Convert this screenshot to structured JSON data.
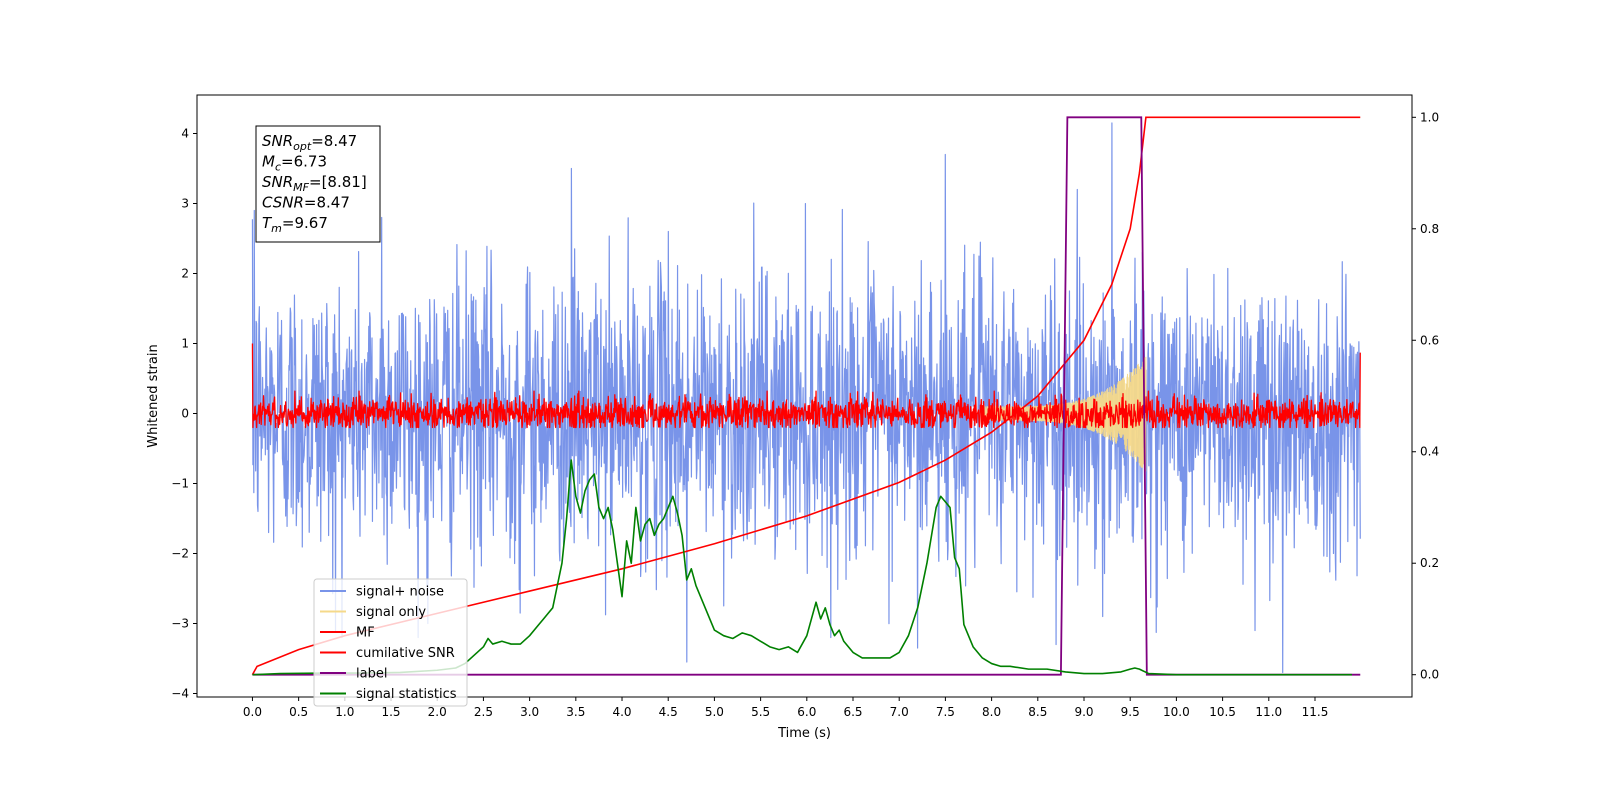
{
  "chart_data": {
    "type": "line",
    "xlabel": "Time (s)",
    "ylabel": "Whitened strain",
    "xlim": [
      -0.6,
      12.55
    ],
    "ylim": [
      -4.05,
      4.55
    ],
    "y2lim": [
      -0.04,
      1.04
    ],
    "xticks": [
      0.0,
      0.5,
      1.0,
      1.5,
      2.0,
      2.5,
      3.0,
      3.5,
      4.0,
      4.5,
      5.0,
      5.5,
      6.0,
      6.5,
      7.0,
      7.5,
      8.0,
      8.5,
      9.0,
      9.5,
      10.0,
      10.5,
      11.0,
      11.5
    ],
    "xtick_labels": [
      "0.0",
      "0.5",
      "1.0",
      "1.5",
      "2.0",
      "2.5",
      "3.0",
      "3.5",
      "4.0",
      "4.5",
      "5.0",
      "5.5",
      "6.0",
      "6.5",
      "7.0",
      "7.5",
      "8.0",
      "8.5",
      "9.0",
      "9.5",
      "10.0",
      "10.5",
      "11.0",
      "11.5"
    ],
    "yticks": [
      -4,
      -3,
      -2,
      -1,
      0,
      1,
      2,
      3,
      4
    ],
    "ytick_labels": [
      "−4",
      "−3",
      "−2",
      "−1",
      "0",
      "1",
      "2",
      "3",
      "4"
    ],
    "y2ticks": [
      0.0,
      0.2,
      0.4,
      0.6,
      0.8,
      1.0
    ],
    "y2tick_labels": [
      "0.0",
      "0.2",
      "0.4",
      "0.6",
      "0.8",
      "1.0"
    ],
    "legend_position": "lower-left",
    "grid": false,
    "annotation": {
      "lines": [
        {
          "main": "SNR",
          "sub": "opt",
          "value": "=8.47"
        },
        {
          "main": "M",
          "sub": "c",
          "value": "=6.73"
        },
        {
          "main": "SNR",
          "sub": "MF",
          "value": "=[8.81]"
        },
        {
          "main": "CSNR",
          "sub": "",
          "value": "=8.47"
        },
        {
          "main": "T",
          "sub": "m",
          "value": "=9.67"
        }
      ]
    },
    "series": [
      {
        "name": "signal+ noise",
        "color": "#7994e9",
        "axis": "left",
        "kind": "noise",
        "x_range": [
          0.0,
          11.99
        ],
        "amplitude": 1.0,
        "peaks": [
          [
            0.02,
            2.9
          ],
          [
            1.4,
            2.8
          ],
          [
            3.45,
            3.5
          ],
          [
            4.5,
            2.6
          ],
          [
            7.5,
            3.7
          ],
          [
            9.3,
            4.15
          ],
          [
            9.2,
            -2.9
          ],
          [
            11.15,
            -3.7
          ],
          [
            4.7,
            -3.55
          ],
          [
            0.9,
            -3.1
          ],
          [
            1.9,
            -3.0
          ],
          [
            7.2,
            -3.35
          ],
          [
            8.7,
            -3.3
          ],
          [
            2.9,
            -2.85
          ],
          [
            10.85,
            -3.1
          ]
        ]
      },
      {
        "name": "signal only",
        "color": "#f5d98a",
        "axis": "left",
        "kind": "chirp",
        "x_range": [
          7.9,
          9.67
        ],
        "peak_amplitude": 0.85
      },
      {
        "name": "MF",
        "color": "#ff0000",
        "axis": "left",
        "kind": "noise",
        "x_range": [
          0.0,
          11.99
        ],
        "amplitude": 0.12,
        "start_value": 1.0,
        "end_value": 0.87
      },
      {
        "name": "cumilative SNR",
        "color": "#ff0000",
        "axis": "right",
        "x": [
          0.0,
          0.05,
          0.5,
          1.0,
          2.0,
          3.0,
          4.0,
          5.0,
          6.0,
          7.0,
          7.5,
          8.0,
          8.5,
          9.0,
          9.3,
          9.5,
          9.6,
          9.67,
          11.99
        ],
        "y": [
          0.0,
          0.015,
          0.045,
          0.07,
          0.11,
          0.15,
          0.19,
          0.235,
          0.285,
          0.345,
          0.385,
          0.435,
          0.5,
          0.6,
          0.7,
          0.8,
          0.9,
          1.0,
          1.0
        ]
      },
      {
        "name": "label",
        "color": "#800080",
        "axis": "right",
        "x": [
          0.0,
          8.75,
          8.82,
          9.62,
          9.68,
          11.99
        ],
        "y": [
          0.0,
          0.0,
          1.0,
          1.0,
          0.0,
          0.0
        ]
      },
      {
        "name": "signal statistics",
        "color": "#008000",
        "axis": "right",
        "x": [
          0.0,
          0.3,
          0.8,
          1.2,
          1.6,
          2.0,
          2.2,
          2.3,
          2.4,
          2.5,
          2.55,
          2.6,
          2.7,
          2.8,
          2.9,
          3.0,
          3.1,
          3.15,
          3.2,
          3.25,
          3.3,
          3.35,
          3.4,
          3.45,
          3.5,
          3.55,
          3.6,
          3.65,
          3.7,
          3.75,
          3.8,
          3.85,
          3.9,
          3.95,
          4.0,
          4.05,
          4.1,
          4.15,
          4.2,
          4.25,
          4.3,
          4.35,
          4.4,
          4.45,
          4.5,
          4.55,
          4.6,
          4.65,
          4.7,
          4.75,
          4.8,
          4.9,
          5.0,
          5.1,
          5.2,
          5.3,
          5.4,
          5.5,
          5.6,
          5.7,
          5.8,
          5.9,
          6.0,
          6.05,
          6.1,
          6.15,
          6.2,
          6.25,
          6.3,
          6.35,
          6.4,
          6.5,
          6.6,
          6.7,
          6.8,
          6.9,
          7.0,
          7.1,
          7.2,
          7.3,
          7.4,
          7.45,
          7.5,
          7.55,
          7.6,
          7.65,
          7.7,
          7.8,
          7.9,
          8.0,
          8.1,
          8.2,
          8.4,
          8.6,
          8.8,
          9.0,
          9.2,
          9.4,
          9.5,
          9.55,
          9.6,
          9.7,
          10.0,
          11.0,
          11.9
        ],
        "y": [
          0.0,
          0.002,
          0.003,
          0.003,
          0.004,
          0.008,
          0.012,
          0.02,
          0.035,
          0.05,
          0.065,
          0.055,
          0.06,
          0.055,
          0.055,
          0.07,
          0.09,
          0.1,
          0.11,
          0.12,
          0.16,
          0.2,
          0.28,
          0.385,
          0.32,
          0.29,
          0.33,
          0.35,
          0.36,
          0.3,
          0.28,
          0.3,
          0.26,
          0.2,
          0.14,
          0.24,
          0.2,
          0.3,
          0.24,
          0.27,
          0.28,
          0.25,
          0.27,
          0.28,
          0.3,
          0.32,
          0.29,
          0.25,
          0.17,
          0.19,
          0.16,
          0.12,
          0.08,
          0.07,
          0.065,
          0.075,
          0.07,
          0.06,
          0.05,
          0.045,
          0.05,
          0.04,
          0.07,
          0.1,
          0.13,
          0.1,
          0.12,
          0.09,
          0.07,
          0.08,
          0.06,
          0.04,
          0.03,
          0.03,
          0.03,
          0.03,
          0.04,
          0.07,
          0.12,
          0.2,
          0.3,
          0.32,
          0.31,
          0.3,
          0.21,
          0.19,
          0.09,
          0.05,
          0.03,
          0.02,
          0.015,
          0.015,
          0.01,
          0.01,
          0.005,
          0.002,
          0.002,
          0.005,
          0.01,
          0.012,
          0.01,
          0.002,
          0.0,
          0.0,
          0.0
        ]
      }
    ]
  }
}
